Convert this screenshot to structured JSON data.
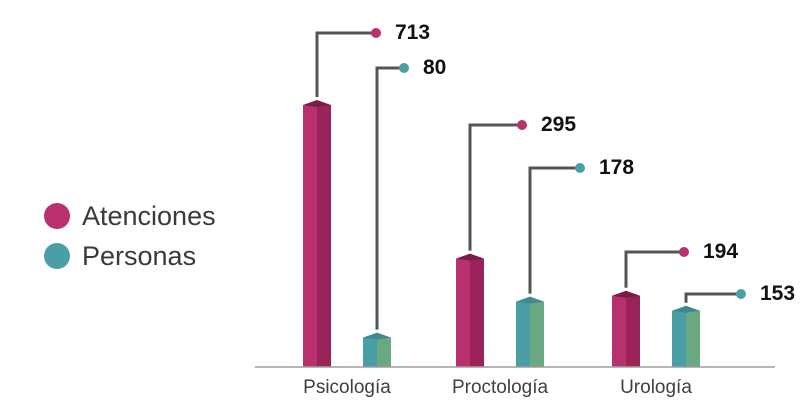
{
  "chart_data": {
    "type": "bar",
    "categories": [
      "Psicología",
      "Proctología",
      "Urología"
    ],
    "series": [
      {
        "name": "Atenciones",
        "values": [
          713,
          295,
          194
        ],
        "color": "#b8306e"
      },
      {
        "name": "Personas",
        "values": [
          80,
          178,
          153
        ],
        "color": "#4a9fa6"
      }
    ],
    "title": "",
    "xlabel": "",
    "ylabel": "",
    "legend_position": "left",
    "grid": false,
    "data_labels": "leader-lines"
  },
  "legend": {
    "items": [
      {
        "label": "Atenciones",
        "color": "#b8306e"
      },
      {
        "label": "Personas",
        "color": "#4a9fa6"
      }
    ]
  }
}
